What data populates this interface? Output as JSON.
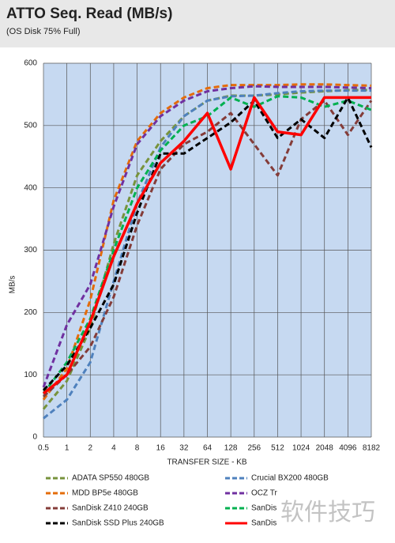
{
  "chart_data": {
    "type": "line",
    "title": "ATTO Seq. Read (MB/s)",
    "subtitle": "(OS Disk 75% Full)",
    "y_label": "MB/s",
    "x_label": "TRANSFER SIZE - KB",
    "categories": [
      "0.5",
      "1",
      "2",
      "4",
      "8",
      "16",
      "32",
      "64",
      "128",
      "256",
      "512",
      "1024",
      "2048",
      "4096",
      "8182"
    ],
    "ylim": [
      0,
      600
    ],
    "yticks": [
      0,
      100,
      200,
      300,
      400,
      500,
      600
    ],
    "grid": true,
    "series": [
      {
        "name": "ADATA SP550 480GB",
        "color": "#77933c",
        "dash": true,
        "values": [
          45,
          90,
          175,
          310,
          420,
          475,
          515,
          540,
          548,
          548,
          550,
          553,
          555,
          557,
          557
        ]
      },
      {
        "name": "Crucial BX200 480GB",
        "color": "#4f81bd",
        "dash": true,
        "values": [
          30,
          60,
          120,
          250,
          375,
          465,
          515,
          540,
          547,
          548,
          552,
          555,
          556,
          556,
          556
        ]
      },
      {
        "name": "MDD BP5e 480GB",
        "color": "#e46c0a",
        "dash": true,
        "values": [
          60,
          110,
          220,
          380,
          475,
          520,
          545,
          560,
          565,
          565,
          565,
          566,
          566,
          565,
          564
        ]
      },
      {
        "name": "OCZ Tr",
        "color": "#7030a0",
        "dash": true,
        "values": [
          80,
          180,
          245,
          370,
          470,
          515,
          540,
          555,
          560,
          563,
          562,
          562,
          562,
          561,
          560
        ]
      },
      {
        "name": "SanDisk Z410 240GB",
        "color": "#843c39",
        "dash": true,
        "values": [
          65,
          100,
          145,
          225,
          340,
          430,
          470,
          490,
          520,
          470,
          420,
          510,
          540,
          485,
          540
        ]
      },
      {
        "name": "SanDis",
        "color": "#00b050",
        "dash": true,
        "values": [
          70,
          120,
          190,
          300,
          400,
          460,
          500,
          515,
          545,
          530,
          547,
          545,
          530,
          540,
          525
        ]
      },
      {
        "name": "SanDisk SSD Plus 240GB",
        "color": "#000000",
        "dash": true,
        "values": [
          75,
          115,
          175,
          245,
          360,
          455,
          455,
          480,
          505,
          540,
          480,
          510,
          480,
          545,
          465
        ]
      },
      {
        "name": "SanDis",
        "color": "#ff0000",
        "dash": false,
        "values": [
          70,
          100,
          185,
          290,
          375,
          440,
          475,
          520,
          430,
          545,
          490,
          485,
          545,
          545,
          545
        ]
      }
    ]
  },
  "watermark": "软件技巧"
}
